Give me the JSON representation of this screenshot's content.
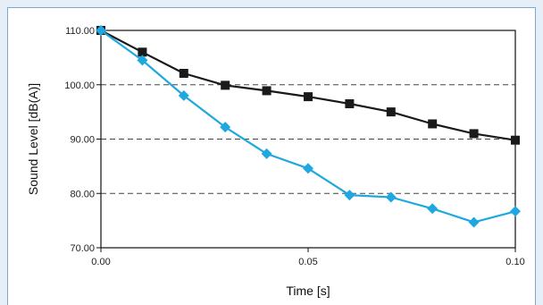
{
  "chart_data": {
    "type": "line",
    "xlabel": "Time [s]",
    "ylabel": "Sound Level [dB(A)]",
    "xlim": [
      0,
      0.1
    ],
    "ylim": [
      70,
      110
    ],
    "x_ticks": [
      {
        "value": 0,
        "label": "0.00"
      },
      {
        "value": 0.05,
        "label": "0.05"
      },
      {
        "value": 0.1,
        "label": "0.10"
      }
    ],
    "y_ticks": [
      {
        "value": 70,
        "label": "70.00"
      },
      {
        "value": 80,
        "label": "80.00"
      },
      {
        "value": 90,
        "label": "90.00"
      },
      {
        "value": 100,
        "label": "100.00"
      },
      {
        "value": 110,
        "label": "110.00"
      }
    ],
    "grid": "horizontal dashed",
    "legend": "none",
    "x": [
      0,
      0.01,
      0.02,
      0.03,
      0.04,
      0.05,
      0.06,
      0.07,
      0.08,
      0.09,
      0.1
    ],
    "series": [
      {
        "marker": "square",
        "color": "#1a1a1a",
        "values": [
          110.0,
          106.0,
          102.1,
          99.9,
          98.9,
          97.8,
          96.5,
          95.0,
          92.8,
          91.0,
          89.8
        ]
      },
      {
        "marker": "diamond",
        "color": "#1fa8df",
        "values": [
          110.0,
          104.5,
          98.0,
          92.2,
          87.3,
          84.6,
          79.7,
          79.3,
          77.2,
          74.7,
          76.7
        ]
      }
    ]
  }
}
